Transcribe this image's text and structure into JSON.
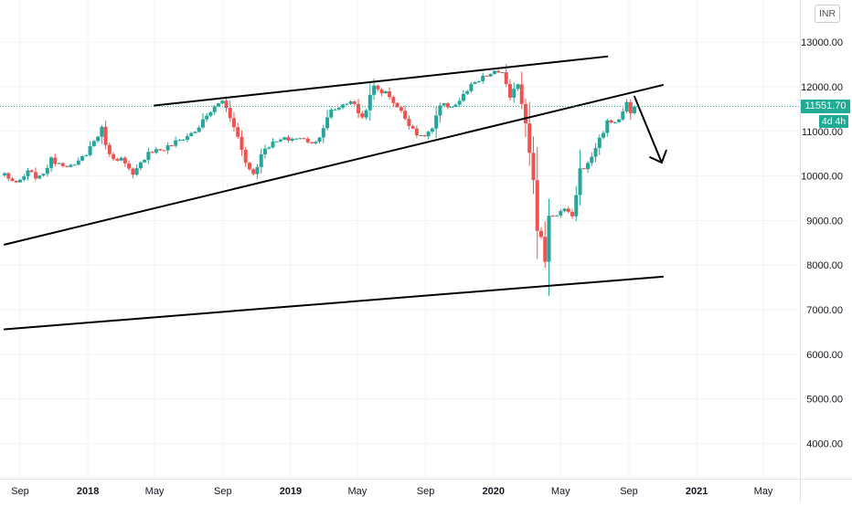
{
  "header": {
    "currency": "INR"
  },
  "last_price": {
    "value": "11551.70",
    "countdown": "4d 4h"
  },
  "colors": {
    "up": "#26a69a",
    "down": "#ef5350",
    "last_price": "#22ab94",
    "grid": "#f0f3fa",
    "axis_text": "#131722",
    "drawing": "#000000"
  },
  "chart_data": {
    "type": "candlestick",
    "interval": "weekly",
    "ylim": [
      3000,
      13600
    ],
    "y_ticks": [
      "13000.00",
      "12000.00",
      "11000.00",
      "10000.00",
      "9000.00",
      "8000.00",
      "7000.00",
      "6000.00",
      "5000.00",
      "4000.00"
    ],
    "x_ticks": [
      {
        "label": "Sep",
        "date": "2017-09-01",
        "bold": false
      },
      {
        "label": "2018",
        "date": "2018-01-01",
        "bold": true
      },
      {
        "label": "May",
        "date": "2018-05-01",
        "bold": false
      },
      {
        "label": "Sep",
        "date": "2018-09-01",
        "bold": false
      },
      {
        "label": "2019",
        "date": "2019-01-01",
        "bold": true
      },
      {
        "label": "May",
        "date": "2019-05-01",
        "bold": false
      },
      {
        "label": "Sep",
        "date": "2019-09-01",
        "bold": false
      },
      {
        "label": "2020",
        "date": "2020-01-01",
        "bold": true
      },
      {
        "label": "May",
        "date": "2020-05-01",
        "bold": false
      },
      {
        "label": "Sep",
        "date": "2020-09-01",
        "bold": false
      },
      {
        "label": "2021",
        "date": "2021-01-01",
        "bold": true
      },
      {
        "label": "May",
        "date": "2021-05-01",
        "bold": false
      }
    ],
    "anchors": [
      [
        "2017-08-04",
        10050
      ],
      [
        "2017-08-25",
        9800
      ],
      [
        "2017-09-15",
        10080
      ],
      [
        "2017-10-06",
        9950
      ],
      [
        "2017-10-27",
        10350
      ],
      [
        "2017-11-17",
        10280
      ],
      [
        "2017-12-08",
        10200
      ],
      [
        "2017-12-29",
        10520
      ],
      [
        "2018-01-26",
        11050
      ],
      [
        "2018-02-09",
        10450
      ],
      [
        "2018-03-02",
        10380
      ],
      [
        "2018-03-23",
        9990
      ],
      [
        "2018-04-20",
        10560
      ],
      [
        "2018-05-18",
        10600
      ],
      [
        "2018-06-15",
        10800
      ],
      [
        "2018-07-13",
        11000
      ],
      [
        "2018-08-10",
        11450
      ],
      [
        "2018-08-31",
        11700
      ],
      [
        "2018-09-21",
        11150
      ],
      [
        "2018-10-12",
        10300
      ],
      [
        "2018-10-26",
        10050
      ],
      [
        "2018-11-16",
        10650
      ],
      [
        "2018-12-14",
        10800
      ],
      [
        "2019-01-11",
        10850
      ],
      [
        "2019-02-15",
        10750
      ],
      [
        "2019-03-15",
        11450
      ],
      [
        "2019-04-19",
        11700
      ],
      [
        "2019-05-10",
        11300
      ],
      [
        "2019-05-31",
        12000
      ],
      [
        "2019-06-28",
        11800
      ],
      [
        "2019-07-26",
        11300
      ],
      [
        "2019-08-23",
        10850
      ],
      [
        "2019-09-13",
        11050
      ],
      [
        "2019-09-27",
        11550
      ],
      [
        "2019-10-25",
        11600
      ],
      [
        "2019-11-22",
        12000
      ],
      [
        "2019-12-20",
        12250
      ],
      [
        "2020-01-17",
        12350
      ],
      [
        "2020-01-31",
        11700
      ],
      [
        "2020-02-14",
        12100
      ],
      [
        "2020-02-28",
        11200
      ],
      [
        "2020-03-13",
        9950
      ],
      [
        "2020-03-20",
        8750
      ],
      [
        "2020-03-27",
        8600
      ],
      [
        "2020-04-03",
        8100
      ],
      [
        "2020-04-10",
        9100
      ],
      [
        "2020-04-24",
        9150
      ],
      [
        "2020-05-08",
        9250
      ],
      [
        "2020-05-22",
        9050
      ],
      [
        "2020-06-05",
        10150
      ],
      [
        "2020-06-19",
        10250
      ],
      [
        "2020-07-03",
        10650
      ],
      [
        "2020-07-24",
        11200
      ],
      [
        "2020-08-14",
        11250
      ],
      [
        "2020-08-28",
        11650
      ],
      [
        "2020-09-04",
        11350
      ],
      [
        "2020-09-11",
        11551.7
      ]
    ]
  },
  "drawings": [
    {
      "name": "upper-channel-line",
      "p1": [
        "2018-05-01",
        11580
      ],
      "p2": [
        "2020-07-24",
        12680
      ]
    },
    {
      "name": "middle-trend-line",
      "p1": [
        "2017-08-04",
        8460
      ],
      "p2": [
        "2020-11-01",
        12040
      ]
    },
    {
      "name": "lower-trend-line",
      "p1": [
        "2017-08-04",
        6560
      ],
      "p2": [
        "2020-11-01",
        7740
      ]
    },
    {
      "name": "down-arrow-line",
      "p1": [
        "2020-09-11",
        11780
      ],
      "p2": [
        "2020-10-30",
        10300
      ]
    }
  ]
}
